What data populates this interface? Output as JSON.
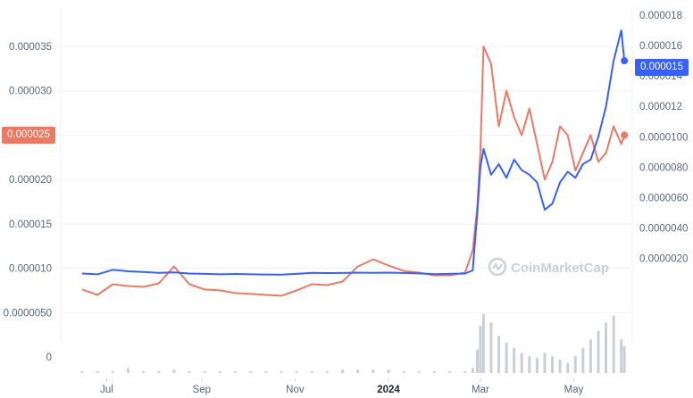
{
  "watermark": "CoinMarketCap",
  "badges": {
    "left": "0.000025",
    "right": "0.000015"
  },
  "colors": {
    "price_line": "#3861fb",
    "compare_line": "#ea7a66",
    "volume": "#c9ced8",
    "grid": "#eff2f5"
  },
  "chart_data": {
    "type": "line",
    "title": "",
    "xlabel": "",
    "ylabel": "",
    "grid": true,
    "x_ticks": [
      "Jul",
      "Sep",
      "Nov",
      "2024",
      "Mar",
      "May"
    ],
    "left_axis": {
      "ticks": [
        "0",
        "0.0000050",
        "0.000010",
        "0.000015",
        "0.000020",
        "0.000025",
        "0.000030",
        "0.000035"
      ],
      "ylim": [
        0,
        3.6e-05
      ]
    },
    "right_axis": {
      "ticks": [
        "0.0000020",
        "0.0000040",
        "0.0000060",
        "0.0000080",
        "0.0000100",
        "0.000012",
        "0.000014",
        "0.000016",
        "0.000018"
      ],
      "ylim": [
        2e-07,
        1.84e-05
      ]
    },
    "x_dates": [
      "2023-06-15",
      "2023-06-25",
      "2023-07-05",
      "2023-07-15",
      "2023-07-25",
      "2023-08-04",
      "2023-08-14",
      "2023-08-24",
      "2023-09-03",
      "2023-09-13",
      "2023-09-23",
      "2023-10-03",
      "2023-10-13",
      "2023-10-23",
      "2023-11-02",
      "2023-11-12",
      "2023-11-22",
      "2023-12-02",
      "2023-12-12",
      "2023-12-22",
      "2024-01-01",
      "2024-01-11",
      "2024-01-21",
      "2024-01-31",
      "2024-02-10",
      "2024-02-20",
      "2024-02-25",
      "2024-02-28",
      "2024-03-01",
      "2024-03-03",
      "2024-03-08",
      "2024-03-13",
      "2024-03-18",
      "2024-03-23",
      "2024-03-28",
      "2024-04-02",
      "2024-04-07",
      "2024-04-12",
      "2024-04-17",
      "2024-04-22",
      "2024-04-27",
      "2024-05-02",
      "2024-05-07",
      "2024-05-12",
      "2024-05-17",
      "2024-05-22",
      "2024-05-27",
      "2024-06-01",
      "2024-06-03"
    ],
    "series": [
      {
        "color": "#ea7a66",
        "axis": "left",
        "values": [
          7.6e-06,
          7e-06,
          8.2e-06,
          8e-06,
          7.9e-06,
          8.3e-06,
          1.02e-05,
          8.2e-06,
          7.6e-06,
          7.5e-06,
          7.2e-06,
          7.1e-06,
          7e-06,
          6.9e-06,
          7.5e-06,
          8.2e-06,
          8.1e-06,
          8.5e-06,
          1.02e-05,
          1.1e-05,
          1.03e-05,
          9.7e-06,
          9.5e-06,
          9.2e-06,
          9.2e-06,
          9.5e-06,
          1.2e-05,
          1.7e-05,
          2.3e-05,
          3.5e-05,
          3.3e-05,
          2.6e-05,
          3e-05,
          2.7e-05,
          2.5e-05,
          2.8e-05,
          2.4e-05,
          2e-05,
          2.2e-05,
          2.6e-05,
          2.5e-05,
          2.1e-05,
          2.3e-05,
          2.5e-05,
          2.2e-05,
          2.3e-05,
          2.6e-05,
          2.4e-05,
          2.5e-05
        ]
      },
      {
        "color": "#3861fb",
        "axis": "right",
        "values": [
          1e-06,
          9.5e-07,
          1.25e-06,
          1.15e-06,
          1.1e-06,
          1.05e-06,
          1.08e-06,
          1e-06,
          9.8e-07,
          9.5e-07,
          9.7e-07,
          9.5e-07,
          9.4e-07,
          9.3e-07,
          9.8e-07,
          1.05e-06,
          1.03e-06,
          1.04e-06,
          1.06e-06,
          1.05e-06,
          1.06e-06,
          1.04e-06,
          1.01e-06,
          9.6e-07,
          9.8e-07,
          1e-06,
          1.2e-06,
          5e-06,
          8e-06,
          9.2e-06,
          7.5e-06,
          8.2e-06,
          7.3e-06,
          8.5e-06,
          7.8e-06,
          7.5e-06,
          7e-06,
          5.2e-06,
          5.6e-06,
          7e-06,
          7.7e-06,
          7.3e-06,
          8.2e-06,
          8.5e-06,
          1e-05,
          1.2e-05,
          1.5e-05,
          1.7e-05,
          1.5e-05
        ]
      }
    ],
    "volume": [
      1,
      1,
      1,
      3,
      1,
      1,
      2,
      1,
      1,
      1,
      1,
      1,
      1,
      1,
      1,
      1,
      1,
      2,
      2,
      2,
      2,
      1,
      1,
      1,
      1,
      1,
      3,
      14,
      28,
      35,
      30,
      22,
      18,
      15,
      12,
      10,
      9,
      12,
      10,
      8,
      6,
      10,
      15,
      20,
      25,
      30,
      34,
      20,
      16
    ]
  }
}
